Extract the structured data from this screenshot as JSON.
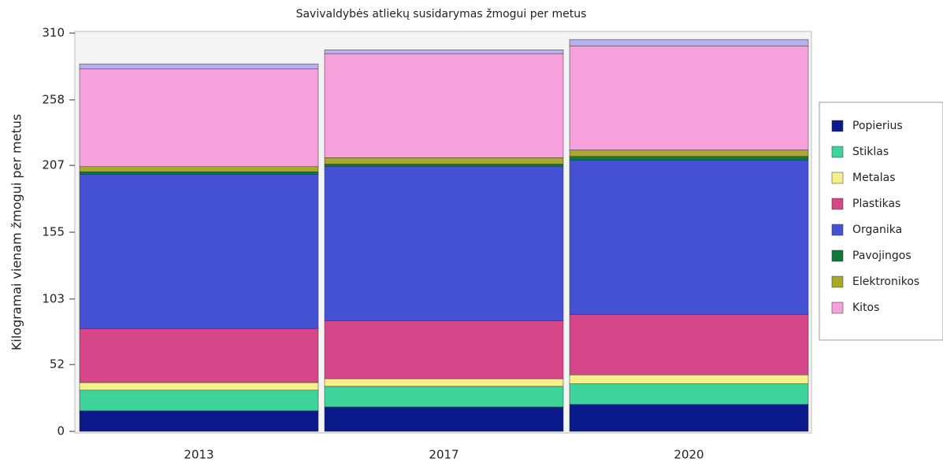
{
  "chart_data": {
    "type": "stacked_bar",
    "title": "Savivaldybės atliekų susidarymas žmogui per metus",
    "y_label": "Kilogramai vienam žmogui per metus",
    "categories": [
      "2013",
      "2017",
      "2020"
    ],
    "series": [
      {
        "name": "Popierius",
        "color": "#0a1a8a",
        "values": [
          16,
          19,
          21
        ]
      },
      {
        "name": "Stiklas",
        "color": "#3dd39a",
        "values": [
          16,
          16,
          16
        ]
      },
      {
        "name": "Metalas",
        "color": "#f6f08a",
        "values": [
          6,
          6,
          7
        ]
      },
      {
        "name": "Plastikas",
        "color": "#d6478a",
        "values": [
          42,
          45,
          47
        ]
      },
      {
        "name": "Organika",
        "color": "#4552d3",
        "values": [
          120,
          120,
          120
        ]
      },
      {
        "name": "Pavojingos",
        "color": "#0e7a3a",
        "values": [
          2,
          2,
          3
        ]
      },
      {
        "name": "Elektronikos",
        "color": "#a8a82a",
        "values": [
          4,
          5,
          5
        ]
      },
      {
        "name": "Kitos",
        "color": "#f6a0dc",
        "values": [
          76,
          81,
          81
        ]
      },
      {
        "color": "#b8b0f0",
        "values": [
          4,
          3,
          5
        ]
      }
    ],
    "ylim": [
      0,
      310
    ],
    "yticks": [
      0,
      52,
      103,
      155,
      207,
      258,
      310
    ]
  }
}
